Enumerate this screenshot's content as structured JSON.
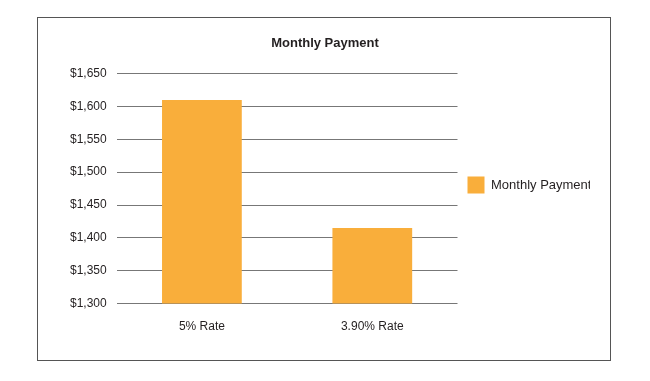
{
  "chart_data": {
    "type": "bar",
    "title": "Monthly Payment",
    "categories": [
      "5% Rate",
      "3.90% Rate"
    ],
    "series": [
      {
        "name": "Monthly Payment",
        "color": "#f9ae3b",
        "values": [
          1610,
          1415
        ]
      }
    ],
    "ylim": [
      1300,
      1650
    ],
    "yticks": [
      {
        "value": 1300,
        "label": "$1,300"
      },
      {
        "value": 1350,
        "label": "$1,350"
      },
      {
        "value": 1400,
        "label": "$1,400"
      },
      {
        "value": 1450,
        "label": "$1,450"
      },
      {
        "value": 1500,
        "label": "$1,500"
      },
      {
        "value": 1550,
        "label": "$1,550"
      },
      {
        "value": 1600,
        "label": "$1,600"
      },
      {
        "value": 1650,
        "label": "$1,650"
      }
    ],
    "grid": true,
    "legend": "right"
  }
}
